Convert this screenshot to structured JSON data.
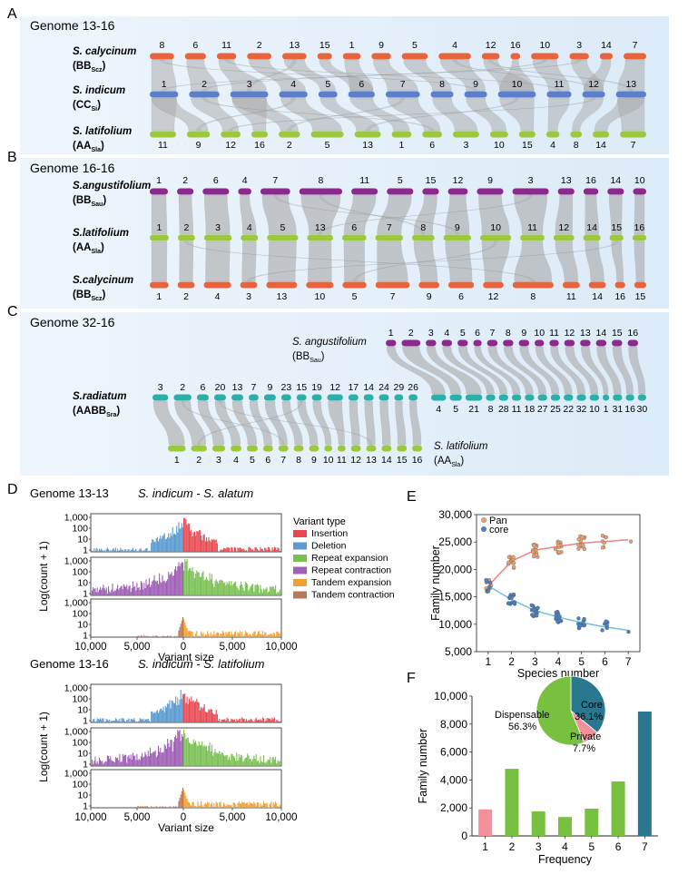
{
  "panels": {
    "A": {
      "letter": "A",
      "title": "Genome 13-16",
      "tracks": [
        {
          "name": "S. calycinum",
          "sub": "BB",
          "subsub": "Scz",
          "color": "#e8643c",
          "chroms": [
            "8",
            "6",
            "11",
            "2",
            "13",
            "15",
            "1",
            "9",
            "5",
            "4",
            "12",
            "16",
            "10",
            "3",
            "14",
            "7"
          ]
        },
        {
          "name": "S. indicum",
          "sub": "CC",
          "subsub": "Si",
          "color": "#5b7fcc",
          "chroms": [
            "1",
            "2",
            "3",
            "4",
            "5",
            "6",
            "7",
            "8",
            "9",
            "10",
            "11",
            "12",
            "13"
          ]
        },
        {
          "name": "S. latifolium",
          "sub": "AA",
          "subsub": "Sla",
          "color": "#9cc83c",
          "chroms": [
            "11",
            "9",
            "12",
            "16",
            "2",
            "5",
            "13",
            "1",
            "6",
            "3",
            "10",
            "15",
            "4",
            "8",
            "14",
            "7"
          ]
        }
      ]
    },
    "B": {
      "letter": "B",
      "title": "Genome 16-16",
      "tracks": [
        {
          "name": "S.angustifolium",
          "sub": "BB",
          "subsub": "Sau",
          "color": "#8b2a8c",
          "chroms": [
            "1",
            "2",
            "6",
            "4",
            "7",
            "8",
            "11",
            "5",
            "15",
            "12",
            "9",
            "3",
            "13",
            "16",
            "14",
            "10"
          ]
        },
        {
          "name": "S.latifolium",
          "sub": "AA",
          "subsub": "Sla",
          "color": "#9cc83c",
          "chroms": [
            "1",
            "2",
            "3",
            "4",
            "5",
            "13",
            "6",
            "7",
            "8",
            "9",
            "10",
            "11",
            "12",
            "14",
            "15",
            "16"
          ]
        },
        {
          "name": "S.calycinum",
          "sub": "BB",
          "subsub": "Scz",
          "color": "#e8643c",
          "chroms": [
            "1",
            "2",
            "4",
            "3",
            "13",
            "10",
            "5",
            "7",
            "9",
            "6",
            "12",
            "8",
            "11",
            "14",
            "16",
            "15"
          ]
        }
      ]
    },
    "C": {
      "letter": "C",
      "title": "Genome 32-16",
      "top": {
        "name": "S. angustifolium",
        "sub": "BB",
        "subsub": "Sau",
        "color": "#8b2a8c",
        "chroms": [
          "1",
          "2",
          "3",
          "4",
          "5",
          "6",
          "7",
          "8",
          "9",
          "10",
          "11",
          "12",
          "13",
          "14",
          "15",
          "16"
        ]
      },
      "mid": {
        "name": "S.radiatum",
        "sub": "AABB",
        "subsub": "Sra",
        "color": "#2ab0a8",
        "chroms_top": [
          "3",
          "2",
          "6",
          "20",
          "13",
          "7",
          "9",
          "23",
          "15",
          "19",
          "12",
          "17",
          "14",
          "24",
          "29",
          "26"
        ],
        "chroms_bottom": [
          "4",
          "5",
          "21",
          "8",
          "28",
          "11",
          "18",
          "27",
          "25",
          "22",
          "32",
          "10",
          "1",
          "31",
          "16",
          "30"
        ]
      },
      "bot": {
        "name": "S. latifolium",
        "sub": "AA",
        "subsub": "Sla",
        "color": "#9cc83c",
        "chroms": [
          "1",
          "2",
          "3",
          "4",
          "5",
          "6",
          "7",
          "8",
          "9",
          "10",
          "11",
          "12",
          "13",
          "14",
          "15",
          "16"
        ]
      }
    },
    "D": {
      "letter": "D",
      "blocks": [
        {
          "title": "Genome 13-13",
          "pair": "S. indicum - S. alatum"
        },
        {
          "title": "Genome 13-16",
          "pair": "S. indicum - S. latifolium"
        }
      ],
      "ylabel": "Log(count + 1)",
      "xlabel": "Variant size",
      "yticks": [
        "1,000",
        "100",
        "10",
        "1"
      ],
      "xticks": [
        "10,000",
        "5,000",
        "0",
        "5,000",
        "10,000"
      ],
      "legend_title": "Variant type",
      "legend": [
        {
          "label": "Insertion",
          "color": "#e84850"
        },
        {
          "label": "Deletion",
          "color": "#5b9bd0"
        },
        {
          "label": "Repeat expansion",
          "color": "#78c050"
        },
        {
          "label": "Repeat contraction",
          "color": "#a060b8"
        },
        {
          "label": "Tandem expansion",
          "color": "#f0a030"
        },
        {
          "label": "Tandem contraction",
          "color": "#b87860"
        }
      ]
    },
    "E": {
      "letter": "E",
      "chart_data": {
        "type": "scatter",
        "xlabel": "Species number",
        "ylabel": "Family number",
        "x": [
          1,
          2,
          3,
          4,
          5,
          6,
          7
        ],
        "xlim": [
          0.5,
          7.5
        ],
        "ylim": [
          5000,
          30000
        ],
        "yticks": [
          "30,000",
          "25,000",
          "20,000",
          "15,000",
          "10,000",
          "5,000"
        ],
        "series": [
          {
            "name": "Pan",
            "color": "#e8a070",
            "values": [
              17000,
              21500,
              23500,
              24200,
              24800,
              25100,
              25400
            ]
          },
          {
            "name": "core",
            "color": "#4a7fc0",
            "values": [
              17000,
              14500,
              12500,
              11300,
              10300,
              9500,
              8900
            ]
          }
        ]
      }
    },
    "F": {
      "letter": "F",
      "chart_data": {
        "type": "bar",
        "xlabel": "Frequency",
        "ylabel": "Family number",
        "categories": [
          "1",
          "2",
          "3",
          "4",
          "5",
          "6",
          "7"
        ],
        "values": [
          1900,
          4800,
          1750,
          1350,
          1950,
          3900,
          8900
        ],
        "colors": [
          "#f4909a",
          "#78c040",
          "#78c040",
          "#78c040",
          "#78c040",
          "#78c040",
          "#2a7890"
        ],
        "ylim": [
          0,
          10000
        ],
        "yticks": [
          "10,000",
          "8,000",
          "6,000",
          "4,000",
          "2,000",
          "0"
        ],
        "pie": [
          {
            "label": "Core",
            "pct": "36.1%",
            "value": 36.1,
            "color": "#2a7890"
          },
          {
            "label": "Private",
            "pct": "7.7%",
            "value": 7.7,
            "color": "#f4909a"
          },
          {
            "label": "Dispensable",
            "pct": "56.3%",
            "value": 56.3,
            "color": "#78c040"
          }
        ]
      }
    }
  }
}
